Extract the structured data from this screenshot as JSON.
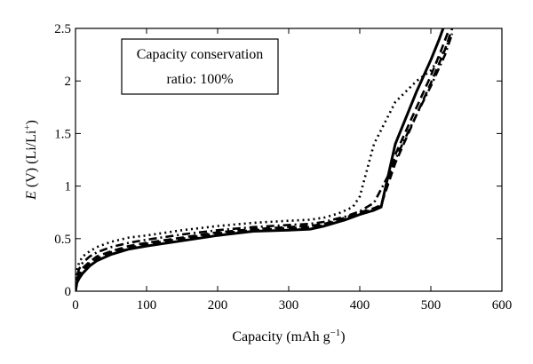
{
  "chart_data": {
    "type": "line",
    "title": "",
    "xlabel": "Capacity (mAh g",
    "xlabel_sup": "−1",
    "xlabel_close": ")",
    "ylabel_italic": "E",
    "ylabel_rest": " (V) (Li/Li",
    "ylabel_sup": "+",
    "ylabel_close": ")",
    "xlim": [
      0,
      600
    ],
    "ylim": [
      0,
      2.5
    ],
    "xticks": [
      "0",
      "100",
      "200",
      "300",
      "400",
      "500",
      "600"
    ],
    "yticks": [
      "0",
      "0.5",
      "1",
      "1.5",
      "2",
      "2.5"
    ],
    "grid": false,
    "annotation": {
      "line1": "Capacity conservation",
      "line2": "ratio: 100%"
    },
    "series": [
      {
        "style": "solid",
        "color": "#000000",
        "x": [
          0,
          2,
          5,
          10,
          20,
          30,
          50,
          75,
          100,
          150,
          200,
          250,
          300,
          330,
          350,
          380,
          400,
          420,
          430,
          450,
          480,
          500,
          512,
          520
        ],
        "y": [
          0,
          0.08,
          0.12,
          0.17,
          0.24,
          0.29,
          0.35,
          0.4,
          0.43,
          0.48,
          0.53,
          0.57,
          0.58,
          0.59,
          0.62,
          0.68,
          0.73,
          0.77,
          0.8,
          1.4,
          1.9,
          2.2,
          2.4,
          2.55
        ]
      },
      {
        "style": "dashed",
        "color": "#000000",
        "x": [
          0,
          2,
          5,
          10,
          20,
          30,
          50,
          75,
          100,
          150,
          200,
          250,
          300,
          330,
          350,
          380,
          400,
          420,
          430,
          450,
          480,
          500,
          515,
          525
        ],
        "y": [
          0,
          0.1,
          0.15,
          0.2,
          0.27,
          0.31,
          0.37,
          0.41,
          0.45,
          0.5,
          0.55,
          0.58,
          0.6,
          0.61,
          0.63,
          0.69,
          0.74,
          0.78,
          0.81,
          1.3,
          1.75,
          2.05,
          2.3,
          2.48
        ]
      },
      {
        "style": "dashed",
        "color": "#000000",
        "x": [
          0,
          2,
          5,
          10,
          20,
          30,
          50,
          75,
          100,
          150,
          200,
          250,
          300,
          330,
          350,
          380,
          400,
          420,
          430,
          450,
          480,
          500,
          520,
          530
        ],
        "y": [
          0,
          0.12,
          0.17,
          0.22,
          0.28,
          0.33,
          0.38,
          0.43,
          0.46,
          0.51,
          0.56,
          0.59,
          0.61,
          0.62,
          0.64,
          0.7,
          0.75,
          0.79,
          0.82,
          1.22,
          1.68,
          1.98,
          2.3,
          2.5
        ]
      },
      {
        "style": "dash-dot",
        "color": "#000000",
        "x": [
          0,
          2,
          5,
          10,
          20,
          30,
          50,
          75,
          100,
          150,
          200,
          250,
          300,
          330,
          350,
          380,
          400,
          420,
          440,
          460,
          480,
          500,
          520,
          530
        ],
        "y": [
          0,
          0.15,
          0.21,
          0.27,
          0.33,
          0.37,
          0.42,
          0.46,
          0.49,
          0.54,
          0.58,
          0.61,
          0.63,
          0.64,
          0.66,
          0.71,
          0.76,
          0.84,
          1.1,
          1.4,
          1.68,
          1.95,
          2.25,
          2.45
        ]
      },
      {
        "style": "dotted",
        "color": "#000000",
        "x": [
          0,
          2,
          5,
          10,
          20,
          30,
          50,
          75,
          100,
          150,
          200,
          250,
          300,
          330,
          350,
          370,
          390,
          400,
          420,
          450,
          480,
          500,
          520,
          530
        ],
        "y": [
          0,
          0.2,
          0.27,
          0.33,
          0.38,
          0.42,
          0.47,
          0.51,
          0.53,
          0.58,
          0.62,
          0.65,
          0.67,
          0.68,
          0.7,
          0.74,
          0.8,
          0.9,
          1.4,
          1.8,
          2.0,
          2.1,
          2.3,
          2.45
        ]
      }
    ]
  }
}
